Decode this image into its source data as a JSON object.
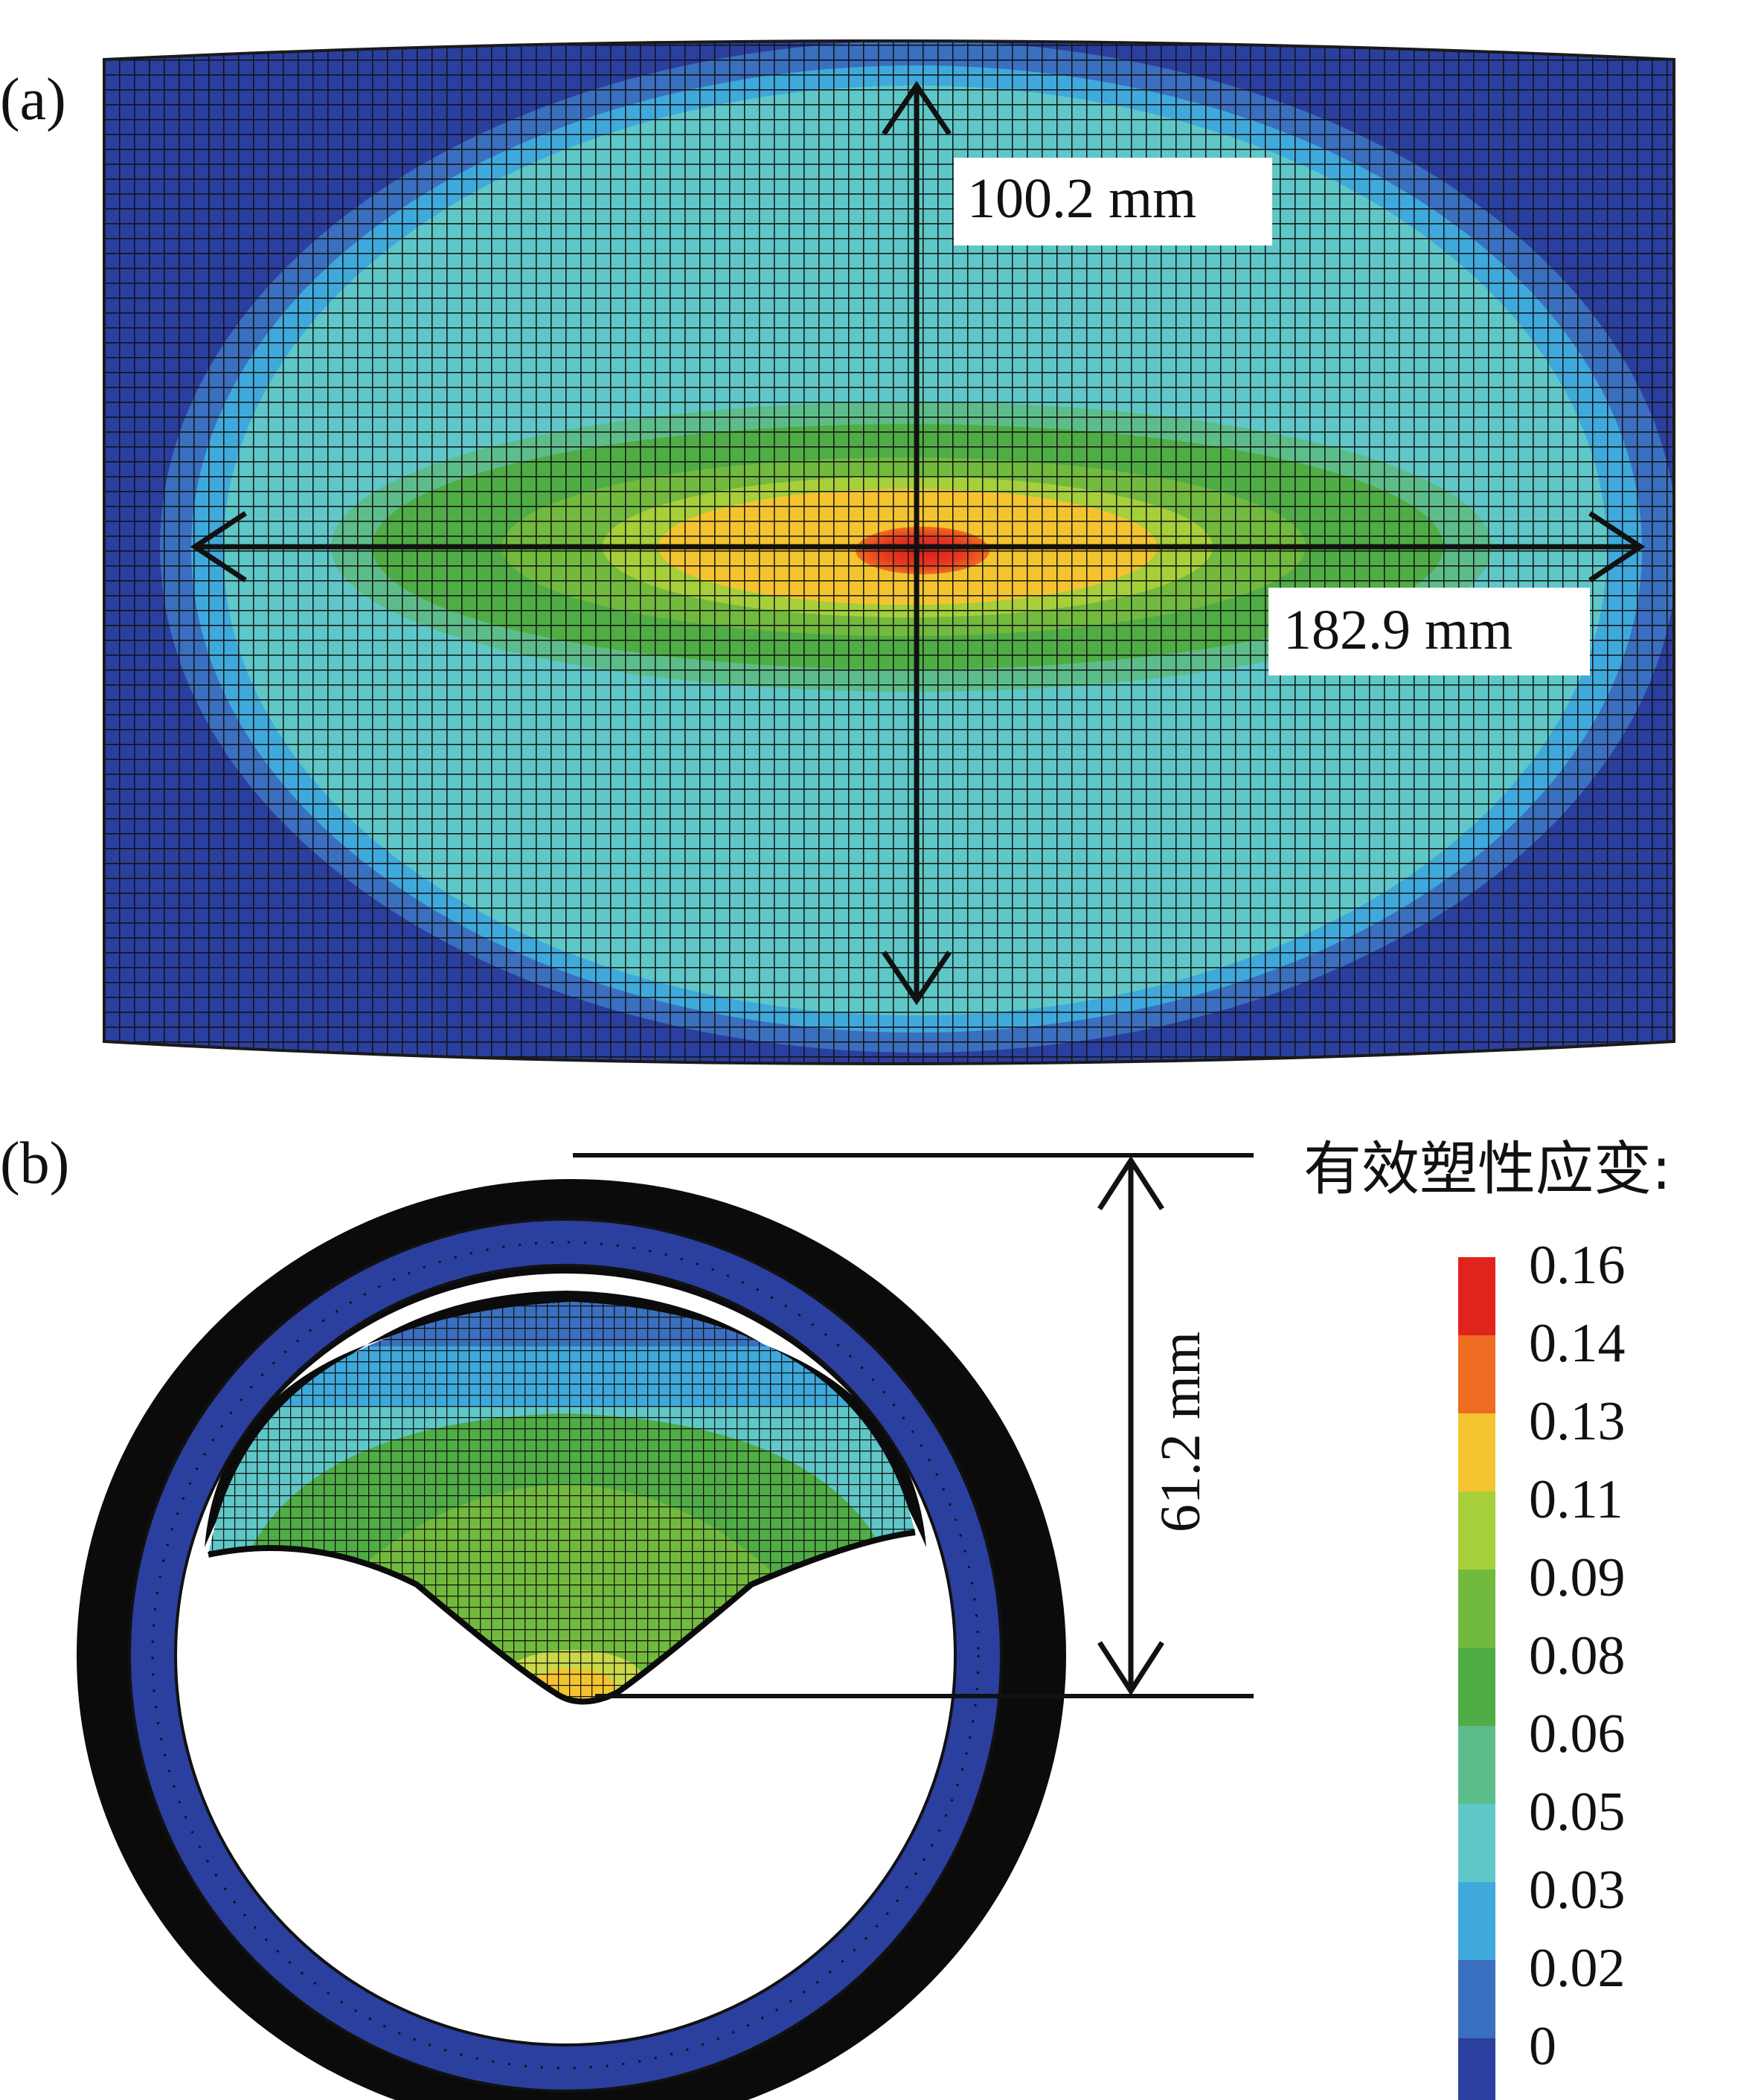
{
  "panel_a": {
    "label": "(a)",
    "vertical_dimension": "100.2 mm",
    "horizontal_dimension": "182.9 mm"
  },
  "panel_b": {
    "label": "(b)",
    "depth_dimension": "61.2 mm"
  },
  "legend": {
    "title": "有效塑性应变:",
    "levels": [
      {
        "value": "0.16",
        "color": "#e0231c"
      },
      {
        "value": "0.14",
        "color": "#ee6c21"
      },
      {
        "value": "0.13",
        "color": "#f4c430"
      },
      {
        "value": "0.11",
        "color": "#a6cf3a"
      },
      {
        "value": "0.09",
        "color": "#72ba3e"
      },
      {
        "value": "0.08",
        "color": "#50ad45"
      },
      {
        "value": "0.06",
        "color": "#5dbd8a"
      },
      {
        "value": "0.05",
        "color": "#5fc7c7"
      },
      {
        "value": "0.03",
        "color": "#3fa9dc"
      },
      {
        "value": "0.02",
        "color": "#3b6fc0"
      },
      {
        "value": "0",
        "color": "#2b3f9e"
      }
    ]
  }
}
